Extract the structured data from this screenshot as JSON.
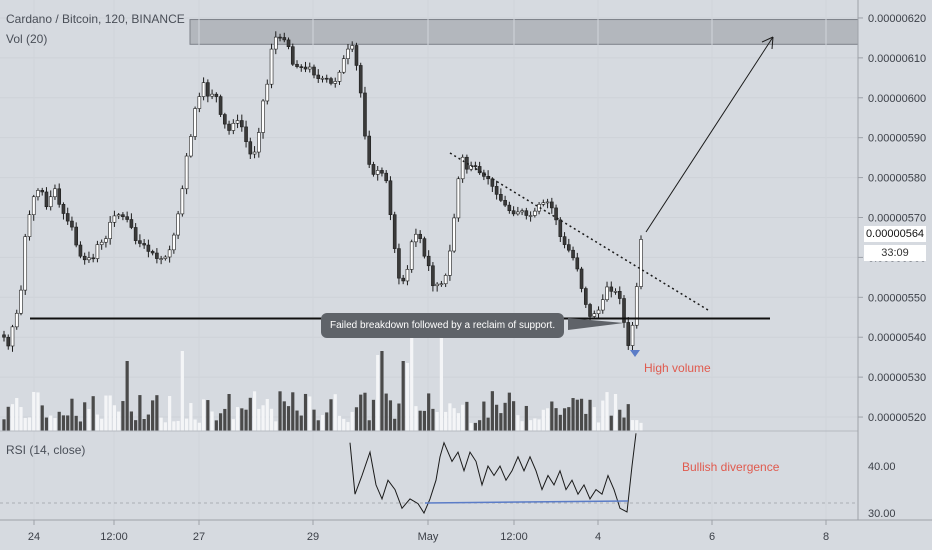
{
  "header": {
    "symbol_line": "Cardano / Bitcoin, 120, BINANCE",
    "volume_label": "Vol (20)",
    "rsi_label": "RSI (14, close)"
  },
  "current_price": "0.00000564",
  "countdown": "33:09",
  "annotations": {
    "callout": "Failed breakdown followed by a reclaim of support.",
    "high_volume": "High volume",
    "bullish_divergence": "Bullish divergence"
  },
  "colors": {
    "background": "#d6dae0",
    "candle_up": "#ffffff",
    "candle_down": "#3a3a3a",
    "wick": "#1e1e1e",
    "resistance_zone": "#a7abb2",
    "annotation_text": "#e05a4e",
    "divergence_line": "#5b7cc7"
  },
  "chart_data": {
    "type": "candlestick",
    "price_axis": {
      "ticks": [
        "0.00000620",
        "0.00000610",
        "0.00000600",
        "0.00000590",
        "0.00000580",
        "0.00000570",
        "0.00000560",
        "0.00000550",
        "0.00000540",
        "0.00000530",
        "0.00000520"
      ],
      "range": [
        5.165e-06,
        6.245e-06
      ]
    },
    "rsi_axis": {
      "ticks": [
        "40.00",
        "30.00"
      ],
      "range": [
        28.5,
        47.5
      ]
    },
    "time_axis": {
      "ticks": [
        "24",
        "12:00",
        "27",
        "29",
        "May",
        "12:00",
        "4",
        "6",
        "8"
      ]
    },
    "support_level": 5.447e-06,
    "resistance_zone": [
      6.134e-06,
      6.196e-06
    ],
    "closes": [
      5.4e-06,
      5.378e-06,
      5.426e-06,
      5.46e-06,
      5.518e-06,
      5.652e-06,
      5.707e-06,
      5.752e-06,
      5.768e-06,
      5.764e-06,
      5.727e-06,
      5.752e-06,
      5.772e-06,
      5.733e-06,
      5.71e-06,
      5.691e-06,
      5.676e-06,
      5.631e-06,
      5.603e-06,
      5.594e-06,
      5.599e-06,
      5.597e-06,
      5.632e-06,
      5.638e-06,
      5.647e-06,
      5.688e-06,
      5.704e-06,
      5.707e-06,
      5.702e-06,
      5.695e-06,
      5.675e-06,
      5.642e-06,
      5.635e-06,
      5.631e-06,
      5.615e-06,
      5.611e-06,
      5.597e-06,
      5.597e-06,
      5.601e-06,
      5.619e-06,
      5.656e-06,
      5.709e-06,
      5.772e-06,
      5.854e-06,
      5.903e-06,
      5.973e-06,
      6.003e-06,
      6.038e-06,
      6.004e-06,
      6.009e-06,
      6.003e-06,
      5.958e-06,
      5.934e-06,
      5.918e-06,
      5.936e-06,
      5.943e-06,
      5.927e-06,
      5.89e-06,
      5.859e-06,
      5.864e-06,
      5.913e-06,
      5.992e-06,
      6.034e-06,
      6.122e-06,
      6.152e-06,
      6.151e-06,
      6.145e-06,
      6.128e-06,
      6.084e-06,
      6.078e-06,
      6.077e-06,
      6.072e-06,
      6.077e-06,
      6.057e-06,
      6.048e-06,
      6.049e-06,
      6.048e-06,
      6.036e-06,
      6.041e-06,
      6.064e-06,
      6.098e-06,
      6.122e-06,
      6.131e-06,
      6.081e-06,
      6.012e-06,
      5.904e-06,
      5.833e-06,
      5.808e-06,
      5.818e-06,
      5.811e-06,
      5.792e-06,
      5.707e-06,
      5.622e-06,
      5.548e-06,
      5.541e-06,
      5.57e-06,
      5.639e-06,
      5.658e-06,
      5.647e-06,
      5.603e-06,
      5.579e-06,
      5.529e-06,
      5.533e-06,
      5.534e-06,
      5.555e-06,
      5.616e-06,
      5.699e-06,
      5.797e-06,
      5.851e-06,
      5.821e-06,
      5.83e-06,
      5.828e-06,
      5.812e-06,
      5.803e-06,
      5.797e-06,
      5.778e-06,
      5.758e-06,
      5.743e-06,
      5.731e-06,
      5.717e-06,
      5.709e-06,
      5.714e-06,
      5.717e-06,
      5.705e-06,
      5.705e-06,
      5.716e-06,
      5.733e-06,
      5.737e-06,
      5.739e-06,
      5.724e-06,
      5.694e-06,
      5.652e-06,
      5.632e-06,
      5.618e-06,
      5.599e-06,
      5.571e-06,
      5.522e-06,
      5.482e-06,
      5.452e-06,
      5.459e-06,
      5.468e-06,
      5.494e-06,
      5.526e-06,
      5.515e-06,
      5.515e-06,
      5.497e-06,
      5.437e-06,
      5.379e-06,
      5.43e-06,
      5.527e-06,
      5.645e-06
    ],
    "volume_ticks": [
      "24",
      "12:00",
      "27",
      "29",
      "May",
      "12:00",
      "4",
      "6",
      "8"
    ]
  }
}
